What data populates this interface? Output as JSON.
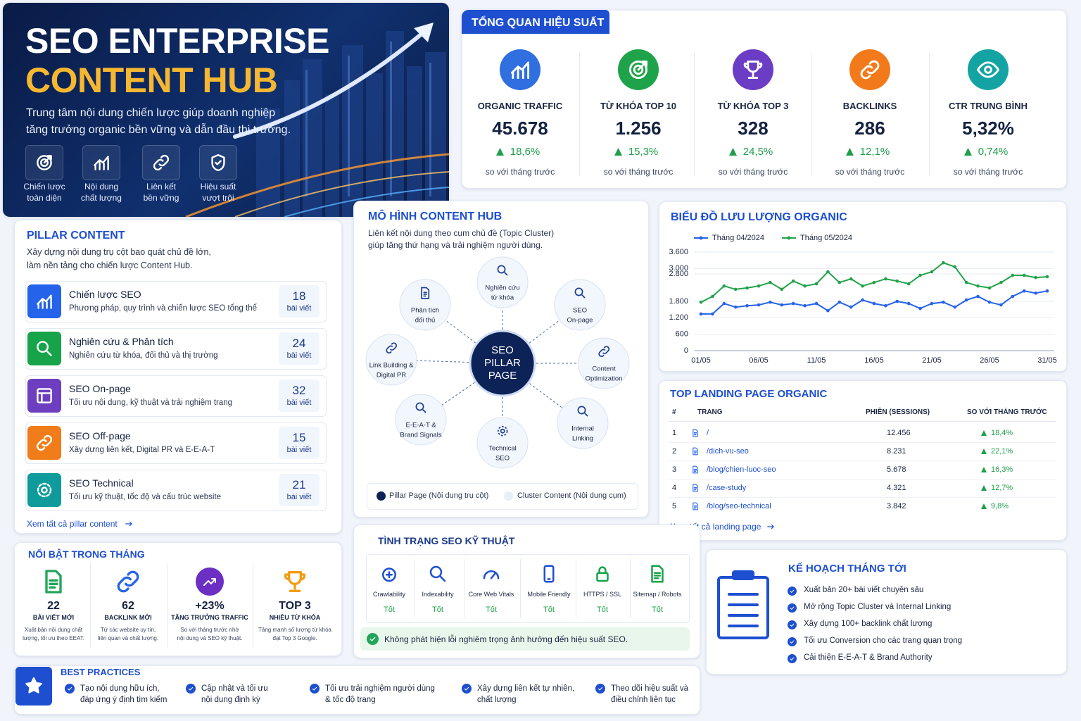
{
  "hero": {
    "title": [
      "SEO ENTERPRISE",
      "CONTENT HUB"
    ],
    "subtitle": [
      "Trung tâm nội dung chiến lược giúp doanh nghiệp",
      "tăng trưởng organic bền vững và dẫn đầu thị trường."
    ],
    "features": [
      [
        "Chiến lược",
        "toàn diện"
      ],
      [
        "Nội dung",
        "chất lượng"
      ],
      [
        "Liên kết",
        "bền vững"
      ],
      [
        "Hiệu suất",
        "vượt trội"
      ]
    ]
  },
  "overview": {
    "title": "TỔNG QUAN HIỆU SUẤT",
    "kpis": [
      {
        "label": "ORGANIC TRAFFIC",
        "value": "45.678",
        "change": "18,6%",
        "note": "so với tháng trước"
      },
      {
        "label": "TỪ KHÓA TOP 10",
        "value": "1.256",
        "change": "15,3%",
        "note": "so với tháng trước"
      },
      {
        "label": "TỪ KHÓA TOP 3",
        "value": "328",
        "change": "24,5%",
        "note": "so với tháng trước"
      },
      {
        "label": "BACKLINKS",
        "value": "286",
        "change": "12,1%",
        "note": "so với tháng trước"
      },
      {
        "label": "CTR TRUNG BÌNH",
        "value": "5,32%",
        "change": "0,74%",
        "note": "so với tháng trước"
      }
    ]
  },
  "pillar": {
    "title": "PILLAR CONTENT",
    "description": [
      "Xây dựng nội dung trụ cột bao quát chủ đề lớn,",
      "làm nền tảng cho chiến lược Content Hub."
    ],
    "items": [
      {
        "title": "Chiến lược SEO",
        "description": "Phương pháp, quy trình và chiến lược SEO tổng thể",
        "count": "18",
        "unit": "bài viết"
      },
      {
        "title": "Nghiên cứu & Phân tích",
        "description": "Nghiên cứu từ khóa, đối thủ và thị trường",
        "count": "24",
        "unit": "bài viết"
      },
      {
        "title": "SEO On-page",
        "description": "Tối ưu nội dung, kỹ thuật và trải nghiệm trang",
        "count": "32",
        "unit": "bài viết"
      },
      {
        "title": "SEO Off-page",
        "description": "Xây dựng liên kết, Digital PR và E-E-A-T",
        "count": "15",
        "unit": "bài viết"
      },
      {
        "title": "SEO Technical",
        "description": "Tối ưu kỹ thuật, tốc độ và cấu trúc website",
        "count": "21",
        "unit": "bài viết"
      }
    ],
    "link": "Xem tất cả pillar content"
  },
  "hub": {
    "title": "MÔ HÌNH CONTENT HUB",
    "subtitle": [
      "Liên kết nội dung theo cụm chủ đề (Topic Cluster)",
      "giúp tăng thứ hạng và trải nghiệm người dùng."
    ],
    "center": [
      "SEO",
      "PILLAR",
      "PAGE"
    ],
    "nodes": [
      [
        "Nghiên cứu",
        "từ khóa"
      ],
      [
        "SEO",
        "On-page"
      ],
      [
        "Content",
        "Optimization"
      ],
      [
        "Internal",
        "Linking"
      ],
      [
        "Technical",
        "SEO"
      ],
      [
        "E-E-A-T &",
        "Brand Signals"
      ],
      [
        "Link Building &",
        "Digital PR"
      ],
      [
        "Phân tích",
        "đối thủ"
      ]
    ],
    "legend": [
      "Pillar Page (Nội dung trụ cột)",
      "Cluster Content (Nội dung cụm)"
    ]
  },
  "chart_data": {
    "type": "line",
    "title": "BIỂU ĐỒ LƯU LƯỢNG ORGANIC",
    "categories": [
      "01/05",
      null,
      null,
      null,
      null,
      "06/05",
      null,
      null,
      null,
      null,
      "11/05",
      null,
      null,
      null,
      null,
      "16/05",
      null,
      null,
      null,
      null,
      "21/05",
      null,
      null,
      null,
      null,
      "26/05",
      null,
      null,
      null,
      null,
      "31/05"
    ],
    "series": [
      {
        "name": "Tháng 04/2024",
        "color": "#2563eb",
        "values": [
          1340,
          1340,
          1720,
          1590,
          1640,
          1670,
          1770,
          1670,
          1720,
          1640,
          1720,
          1460,
          1770,
          1590,
          1850,
          1720,
          1640,
          1800,
          1720,
          1540,
          1720,
          1770,
          1590,
          1850,
          1980,
          1770,
          1670,
          1980,
          2180,
          2100,
          2180
        ]
      },
      {
        "name": "Tháng 05/2024",
        "color": "#22a34a",
        "values": [
          1770,
          1980,
          2360,
          2240,
          2290,
          2360,
          2490,
          2240,
          2540,
          2360,
          2440,
          2880,
          2490,
          2620,
          2360,
          2490,
          2620,
          2540,
          2440,
          2750,
          2880,
          3210,
          3060,
          2490,
          2360,
          2290,
          2490,
          2750,
          2750,
          2670,
          2700
        ]
      }
    ],
    "ylim": [
      0,
      3600
    ],
    "yticks": [
      0,
      600,
      {
        "value": 1200,
        "label": "1.200"
      },
      {
        "value": 1800,
        "label": "1.800"
      },
      {
        "value": 2800,
        "label": "2.800"
      },
      {
        "value": 3000,
        "label": "3.000"
      },
      {
        "value": 3600,
        "label": "3.600"
      }
    ],
    "grid": true,
    "legend": "top-left"
  },
  "landing": {
    "title": "TOP LANDING PAGE ORGANIC",
    "headers": [
      "#",
      "TRANG",
      "PHIÊN (SESSIONS)",
      "SO VỚI THÁNG TRƯỚC"
    ],
    "rows": [
      [
        "1",
        "/",
        "12.456",
        "18,4%"
      ],
      [
        "2",
        "/dich-vu-seo",
        "8.231",
        "22,1%"
      ],
      [
        "3",
        "/blog/chien-luoc-seo",
        "5.678",
        "16,3%"
      ],
      [
        "4",
        "/case-study",
        "4.321",
        "12,7%"
      ],
      [
        "5",
        "/blog/seo-technical",
        "3.842",
        "9,8%"
      ]
    ],
    "link": "Xem tất cả landing page"
  },
  "highlights": {
    "title": "NỔI BẬT TRONG THÁNG",
    "items": [
      {
        "value": "22",
        "label": "BÀI VIẾT MỚI",
        "description": [
          "Xuất bản nội dung chất",
          "lượng, tối ưu theo EEAT."
        ]
      },
      {
        "value": "62",
        "label": "BACKLINK MỚI",
        "description": [
          "Từ các website uy tín,",
          "liên quan và chất lượng."
        ]
      },
      {
        "value": "+23%",
        "label": "TĂNG TRƯỞNG TRAFFIC",
        "description": [
          "So với tháng trước nhờ",
          "nội dung và SEO kỹ thuật."
        ]
      },
      {
        "value": "TOP 3",
        "label": "NHIỀU TỪ KHÓA",
        "description": [
          "Tăng mạnh số lượng từ khóa",
          "đạt Top 3 Google."
        ]
      }
    ]
  },
  "technical": {
    "title": "TÌNH TRẠNG SEO KỸ THUẬT",
    "items": [
      {
        "label": "Crawlability",
        "status": "Tốt"
      },
      {
        "label": "Indexability",
        "status": "Tốt"
      },
      {
        "label": "Core Web Vitals",
        "status": "Tốt"
      },
      {
        "label": "Mobile Friendly",
        "status": "Tốt"
      },
      {
        "label": "HTTPS / SSL",
        "status": "Tốt"
      },
      {
        "label": "Sitemap / Robots",
        "status": "Tốt"
      }
    ],
    "alert": "Không phát hiện lỗi nghiêm trọng ảnh hưởng đến hiệu suất SEO."
  },
  "plan": {
    "title": "KẾ HOẠCH THÁNG TỚI",
    "items": [
      "Xuất bản 20+ bài viết chuyên sâu",
      "Mở rộng Topic Cluster và Internal Linking",
      "Xây dựng 100+ backlink chất lượng",
      "Tối ưu Conversion cho các trang quan trọng",
      "Cải thiện E-E-A-T & Brand Authority"
    ]
  },
  "best_practices": {
    "title": "BEST PRACTICES",
    "items": [
      [
        "Tạo nội dung hữu ích,",
        "đáp ứng ý định tìm kiếm"
      ],
      [
        "Cập nhật và tối ưu",
        "nội dung định kỳ"
      ],
      [
        "Tối ưu trải nghiệm người dùng",
        "& tốc độ trang"
      ],
      [
        "Xây dựng liên kết tự nhiên,",
        "chất lượng"
      ],
      [
        "Theo dõi hiệu suất và",
        "điều chỉnh liên tục"
      ]
    ]
  }
}
